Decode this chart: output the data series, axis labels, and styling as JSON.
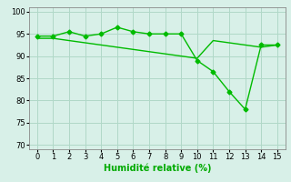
{
  "line1_x": [
    0,
    1,
    2,
    3,
    4,
    5,
    6,
    7,
    8,
    9,
    10,
    11,
    12,
    13,
    14,
    15
  ],
  "line1_y": [
    94.5,
    94.5,
    95.5,
    94.5,
    95.0,
    96.5,
    95.5,
    95.0,
    95.0,
    95.0,
    89.0,
    86.5,
    82.0,
    78.0,
    92.5,
    92.5
  ],
  "line2_x": [
    0,
    1,
    2,
    3,
    4,
    5,
    6,
    7,
    8,
    9,
    10,
    11,
    12,
    13,
    14,
    15
  ],
  "line2_y": [
    94.0,
    94.0,
    93.5,
    93.0,
    92.5,
    92.0,
    91.5,
    91.0,
    90.5,
    90.0,
    89.5,
    93.5,
    93.0,
    92.5,
    92.0,
    92.5
  ],
  "line_color": "#00bb00",
  "marker_style": "D",
  "marker_size": 2.5,
  "bg_color": "#d8f0e8",
  "grid_color": "#b0d8c8",
  "xlabel": "Humidité relative (%)",
  "ylabel_ticks": [
    70,
    75,
    80,
    85,
    90,
    95,
    100
  ],
  "xlim": [
    -0.5,
    15.5
  ],
  "ylim": [
    69,
    101
  ],
  "xticks": [
    0,
    1,
    2,
    3,
    4,
    5,
    6,
    7,
    8,
    9,
    10,
    11,
    12,
    13,
    14,
    15
  ],
  "xlabel_color": "#00aa00",
  "xlabel_fontsize": 7,
  "tick_fontsize": 6,
  "line_width": 1.0
}
